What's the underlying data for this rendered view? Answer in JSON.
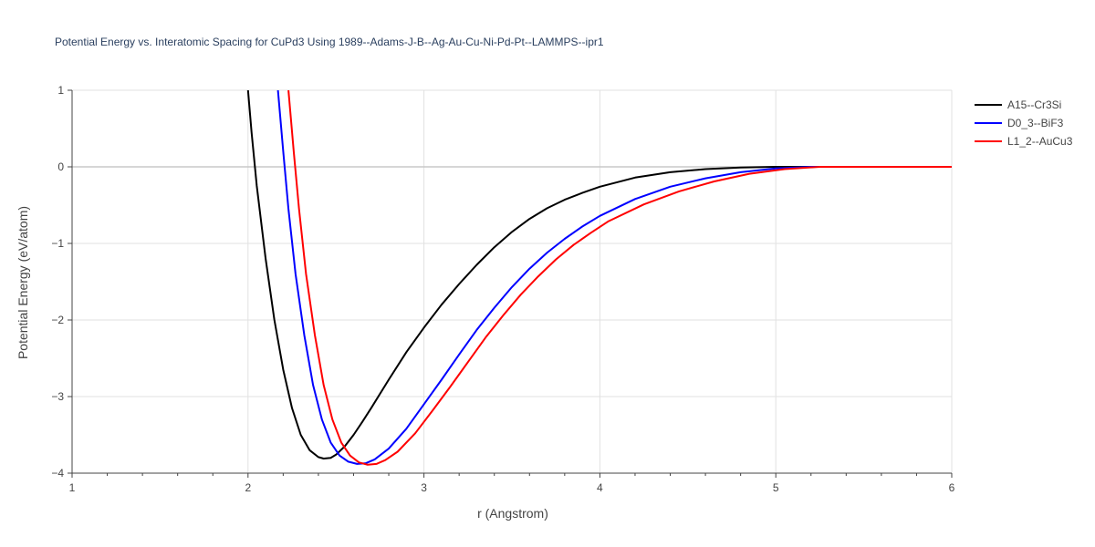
{
  "chart_data": {
    "type": "line",
    "title": "Potential Energy vs. Interatomic Spacing for CuPd3 Using 1989--Adams-J-B--Ag-Au-Cu-Ni-Pd-Pt--LAMMPS--ipr1",
    "xlabel": "r (Angstrom)",
    "ylabel": "Potential Energy (eV/atom)",
    "xlim": [
      1,
      6
    ],
    "ylim": [
      -4,
      1
    ],
    "x_ticks": [
      1,
      2,
      3,
      4,
      5,
      6
    ],
    "x_tick_labels": [
      "1",
      "2",
      "3",
      "4",
      "5",
      "6"
    ],
    "y_ticks": [
      1,
      0,
      -1,
      -2,
      -3,
      -4
    ],
    "y_tick_labels": [
      "1",
      "0",
      "−1",
      "−2",
      "−3",
      "−4"
    ],
    "grid": true,
    "legend_position": "top-right",
    "series": [
      {
        "name": "A15--Cr3Si",
        "color": "#000000",
        "points": [
          [
            2.0,
            1.0
          ],
          [
            2.02,
            0.45
          ],
          [
            2.05,
            -0.25
          ],
          [
            2.1,
            -1.2
          ],
          [
            2.15,
            -2.0
          ],
          [
            2.2,
            -2.65
          ],
          [
            2.25,
            -3.15
          ],
          [
            2.3,
            -3.5
          ],
          [
            2.35,
            -3.7
          ],
          [
            2.4,
            -3.79
          ],
          [
            2.43,
            -3.81
          ],
          [
            2.47,
            -3.8
          ],
          [
            2.5,
            -3.76
          ],
          [
            2.55,
            -3.65
          ],
          [
            2.6,
            -3.5
          ],
          [
            2.65,
            -3.33
          ],
          [
            2.7,
            -3.15
          ],
          [
            2.8,
            -2.78
          ],
          [
            2.9,
            -2.42
          ],
          [
            3.0,
            -2.1
          ],
          [
            3.1,
            -1.8
          ],
          [
            3.2,
            -1.53
          ],
          [
            3.3,
            -1.28
          ],
          [
            3.4,
            -1.05
          ],
          [
            3.5,
            -0.85
          ],
          [
            3.6,
            -0.68
          ],
          [
            3.7,
            -0.54
          ],
          [
            3.8,
            -0.43
          ],
          [
            3.9,
            -0.34
          ],
          [
            4.0,
            -0.26
          ],
          [
            4.2,
            -0.14
          ],
          [
            4.4,
            -0.07
          ],
          [
            4.6,
            -0.03
          ],
          [
            4.8,
            -0.01
          ],
          [
            5.0,
            0.0
          ],
          [
            6.0,
            0.0
          ]
        ]
      },
      {
        "name": "D0_3--BiF3",
        "color": "#0000ff",
        "points": [
          [
            2.17,
            1.0
          ],
          [
            2.2,
            0.2
          ],
          [
            2.23,
            -0.55
          ],
          [
            2.27,
            -1.4
          ],
          [
            2.32,
            -2.2
          ],
          [
            2.37,
            -2.85
          ],
          [
            2.42,
            -3.3
          ],
          [
            2.47,
            -3.6
          ],
          [
            2.52,
            -3.77
          ],
          [
            2.57,
            -3.85
          ],
          [
            2.62,
            -3.88
          ],
          [
            2.67,
            -3.87
          ],
          [
            2.72,
            -3.82
          ],
          [
            2.8,
            -3.68
          ],
          [
            2.9,
            -3.42
          ],
          [
            3.0,
            -3.1
          ],
          [
            3.1,
            -2.78
          ],
          [
            3.2,
            -2.45
          ],
          [
            3.3,
            -2.13
          ],
          [
            3.4,
            -1.84
          ],
          [
            3.5,
            -1.57
          ],
          [
            3.6,
            -1.33
          ],
          [
            3.7,
            -1.12
          ],
          [
            3.8,
            -0.94
          ],
          [
            3.9,
            -0.78
          ],
          [
            4.0,
            -0.64
          ],
          [
            4.2,
            -0.42
          ],
          [
            4.4,
            -0.26
          ],
          [
            4.6,
            -0.15
          ],
          [
            4.8,
            -0.07
          ],
          [
            5.0,
            -0.02
          ],
          [
            5.2,
            0.0
          ],
          [
            6.0,
            0.0
          ]
        ]
      },
      {
        "name": "L1_2--AuCu3",
        "color": "#ff0000",
        "points": [
          [
            2.23,
            1.0
          ],
          [
            2.26,
            0.2
          ],
          [
            2.29,
            -0.55
          ],
          [
            2.33,
            -1.4
          ],
          [
            2.38,
            -2.2
          ],
          [
            2.43,
            -2.85
          ],
          [
            2.48,
            -3.3
          ],
          [
            2.53,
            -3.6
          ],
          [
            2.58,
            -3.77
          ],
          [
            2.63,
            -3.86
          ],
          [
            2.68,
            -3.89
          ],
          [
            2.73,
            -3.88
          ],
          [
            2.78,
            -3.83
          ],
          [
            2.85,
            -3.72
          ],
          [
            2.95,
            -3.48
          ],
          [
            3.05,
            -3.18
          ],
          [
            3.15,
            -2.87
          ],
          [
            3.25,
            -2.55
          ],
          [
            3.35,
            -2.23
          ],
          [
            3.45,
            -1.94
          ],
          [
            3.55,
            -1.67
          ],
          [
            3.65,
            -1.43
          ],
          [
            3.75,
            -1.21
          ],
          [
            3.85,
            -1.02
          ],
          [
            3.95,
            -0.86
          ],
          [
            4.05,
            -0.71
          ],
          [
            4.25,
            -0.49
          ],
          [
            4.45,
            -0.32
          ],
          [
            4.65,
            -0.19
          ],
          [
            4.85,
            -0.09
          ],
          [
            5.05,
            -0.03
          ],
          [
            5.25,
            0.0
          ],
          [
            6.0,
            0.0
          ]
        ]
      }
    ]
  }
}
